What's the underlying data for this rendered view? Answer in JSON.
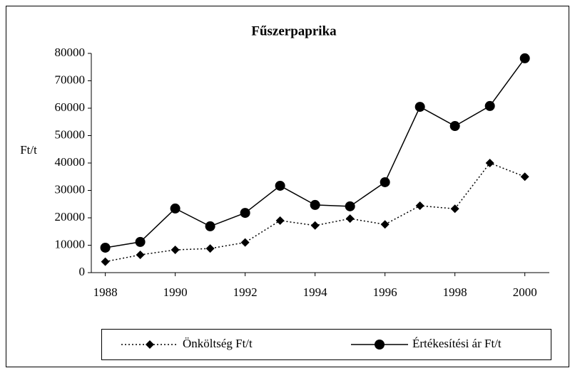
{
  "chart_data": {
    "type": "line",
    "title": "Fűszerpaprika",
    "y_label": "Ft/t",
    "x": [
      1988,
      1989,
      1990,
      1991,
      1992,
      1993,
      1994,
      1995,
      1996,
      1997,
      1998,
      1999,
      2000
    ],
    "series": [
      {
        "name": "Önköltség Ft/t",
        "color": "#000000",
        "style": "dotted",
        "marker": "diamond",
        "values": [
          4000,
          6500,
          8300,
          8800,
          11000,
          19000,
          17200,
          19700,
          17600,
          24400,
          23300,
          40000,
          35000
        ]
      },
      {
        "name": "Értékesítési ár Ft/t",
        "color": "#000000",
        "style": "solid",
        "marker": "circle",
        "values": [
          9100,
          11200,
          23400,
          16900,
          21800,
          31700,
          24700,
          24200,
          33000,
          60500,
          53500,
          60800,
          78200
        ]
      }
    ],
    "xlim": [
      1987.6,
      2000.7
    ],
    "xticks": [
      1988,
      1990,
      1992,
      1994,
      1996,
      1998,
      2000
    ],
    "ylim": [
      0,
      80000
    ],
    "yticks": [
      0,
      10000,
      20000,
      30000,
      40000,
      50000,
      60000,
      70000,
      80000
    ],
    "legend": "bottom"
  }
}
